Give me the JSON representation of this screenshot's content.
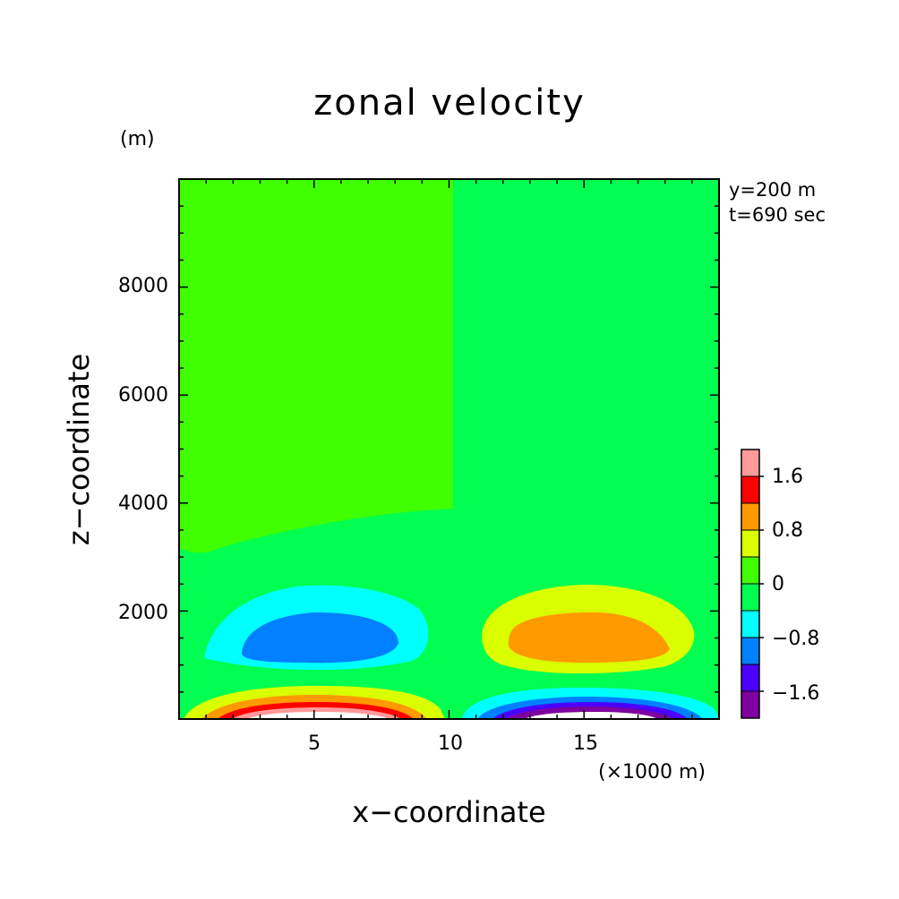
{
  "chart_data": {
    "type": "heatmap",
    "title": "zonal velocity",
    "xlabel": "x−coordinate",
    "ylabel": "z−coordinate",
    "y_unit": "(m)",
    "x_unit": "(×1000 m)",
    "annotations": [
      "y=200 m",
      "t=690 sec"
    ],
    "xlim": [
      0,
      20
    ],
    "ylim": [
      0,
      10000
    ],
    "x_ticks": [
      5,
      10,
      15
    ],
    "x_tick_labels": [
      "5",
      "10",
      "15"
    ],
    "y_ticks": [
      2000,
      4000,
      6000,
      8000
    ],
    "y_tick_labels": [
      "2000",
      "4000",
      "6000",
      "8000"
    ],
    "colorbar": {
      "levels": [
        -2.0,
        -1.6,
        -1.2,
        -0.8,
        -0.4,
        0,
        0.4,
        0.8,
        1.2,
        1.6,
        2.0
      ],
      "labels": [
        "1.6",
        "0.8",
        "0",
        "−0.8",
        "−1.6"
      ],
      "label_values": [
        1.6,
        0.8,
        0,
        -0.8,
        -1.6
      ],
      "colors": [
        "#7f00a0",
        "#4b00ff",
        "#0080ff",
        "#00ffff",
        "#00ff50",
        "#40ff00",
        "#d9ff00",
        "#ff9a00",
        "#ff0000",
        "#ff9a9a"
      ]
    },
    "regions": [
      {
        "name": "upper-left-weak-positive",
        "value_range": [
          0,
          0.4
        ]
      },
      {
        "name": "upper-right-weak-negative",
        "value_range": [
          -0.4,
          0
        ]
      },
      {
        "name": "left-upper-negative-cell",
        "min_value": -1.2
      },
      {
        "name": "right-upper-positive-cell",
        "max_value": 1.2
      },
      {
        "name": "left-surface-positive-jet",
        "max_value": 2.0
      },
      {
        "name": "right-surface-negative-jet",
        "min_value": -2.0
      }
    ]
  }
}
